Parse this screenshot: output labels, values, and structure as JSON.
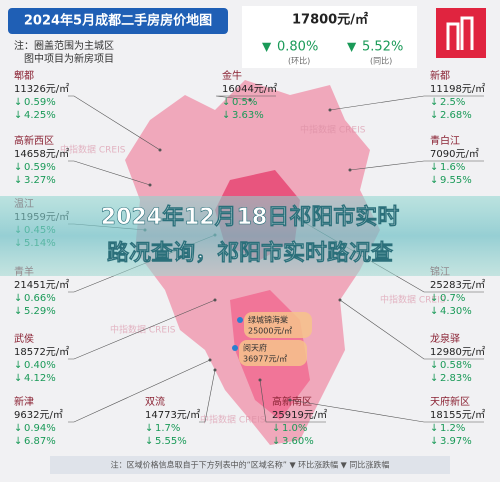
{
  "header": {
    "title": "2024年5月成都二手房房价地图",
    "notes": [
      "注：圈盖范围为主城区",
      "图中项目为新房项目"
    ]
  },
  "city": {
    "price": "17800元/㎡",
    "mom": "0.80%",
    "mom_label": "(环比)",
    "yoy": "5.52%",
    "yoy_label": "(同比)"
  },
  "districts": [
    {
      "name": "郫都",
      "price": "11326元/㎡",
      "mom": "0.59%",
      "yoy": "4.25%"
    },
    {
      "name": "高新西区",
      "price": "14658元/㎡",
      "mom": "0.59%",
      "yoy": "3.27%"
    },
    {
      "name": "温江",
      "price": "11959元/㎡",
      "mom": "0.45%",
      "yoy": "5.14%"
    },
    {
      "name": "青羊",
      "price": "21451元/㎡",
      "mom": "0.66%",
      "yoy": "5.29%"
    },
    {
      "name": "武侯",
      "price": "18572元/㎡",
      "mom": "0.40%",
      "yoy": "4.12%"
    },
    {
      "name": "新津",
      "price": "9632元/㎡",
      "mom": "0.94%",
      "yoy": "6.87%"
    },
    {
      "name": "金牛",
      "price": "16044元/㎡",
      "mom": "0.5%",
      "yoy": "3.63%"
    },
    {
      "name": "双流",
      "price": "14773元/㎡",
      "mom": "1.7%",
      "yoy": "5.55%"
    },
    {
      "name": "高新南区",
      "price": "25919元/㎡",
      "mom": "1.0%",
      "yoy": "3.60%"
    },
    {
      "name": "新都",
      "price": "11198元/㎡",
      "mom": "2.5%",
      "yoy": "2.68%"
    },
    {
      "name": "青白江",
      "price": "7090元/㎡",
      "mom": "1.6%",
      "yoy": "9.55%"
    },
    {
      "name": "锦江",
      "price": "25283元/㎡",
      "mom": "0.7%",
      "yoy": "4.30%"
    },
    {
      "name": "龙泉驿",
      "price": "12980元/㎡",
      "mom": "0.58%",
      "yoy": "2.83%"
    },
    {
      "name": "天府新区",
      "price": "18155元/㎡",
      "mom": "1.2%",
      "yoy": "3.97%"
    }
  ],
  "projects": [
    {
      "name": "绿城锦海棠",
      "price": "25000元/㎡"
    },
    {
      "name": "阅天府",
      "price": "36977元/㎡"
    }
  ],
  "watermark": "中指数据 CREIS",
  "overlay": {
    "line1": "2024年12月18日祁阳市实时",
    "line2": "路况查询，祁阳市实时路况查"
  },
  "footer": "注：区域价格信息取自于下方列表中的“区域名称”  ▼ 环比涨跌幅  ▼ 同比涨跌幅"
}
